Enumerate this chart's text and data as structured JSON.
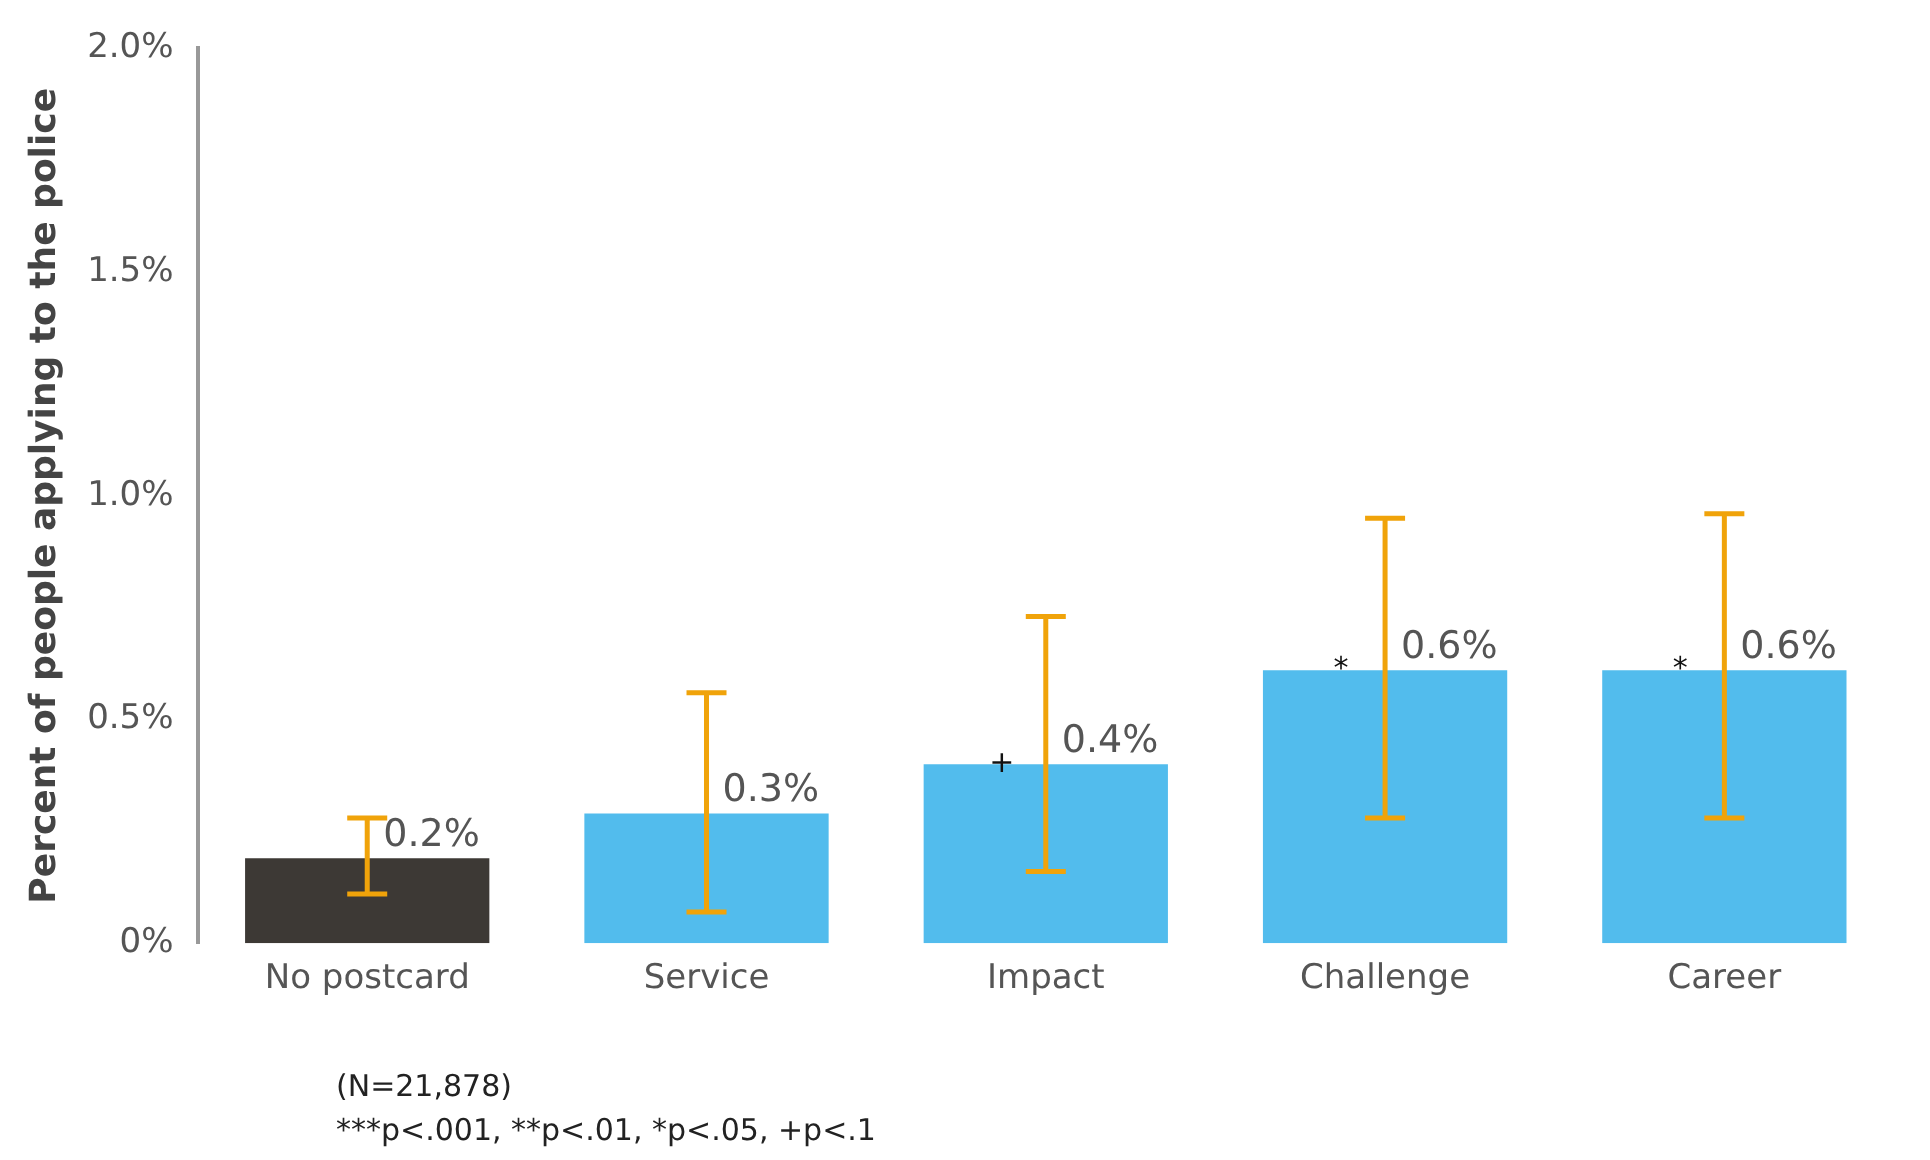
{
  "chart_data": {
    "type": "bar",
    "ylabel": "Percent of people applying to the police",
    "categories": [
      "No postcard",
      "Service",
      "Impact",
      "Challenge",
      "Career"
    ],
    "values": [
      0.19,
      0.29,
      0.4,
      0.61,
      0.61
    ],
    "colors": [
      "#3d3935",
      "#52bced",
      "#52bced",
      "#52bced",
      "#52bced"
    ],
    "errors": [
      [
        0.11,
        0.28
      ],
      [
        0.07,
        0.56
      ],
      [
        0.16,
        0.73
      ],
      [
        0.28,
        0.95
      ],
      [
        0.28,
        0.96
      ]
    ],
    "value_labels": [
      "0.2%",
      "0.3%",
      "0.4%",
      "0.6%",
      "0.6%"
    ],
    "ylim": [
      0,
      2
    ],
    "yticks": [
      {
        "value": 0,
        "label": "0%"
      },
      {
        "value": 0.5,
        "label": "0.5%"
      },
      {
        "value": 1,
        "label": "1.0%"
      },
      {
        "value": 1.5,
        "label": "1.5%"
      },
      {
        "value": 2,
        "label": "2.0%"
      }
    ],
    "grid": false,
    "legend": false,
    "annotations": [
      {
        "text": "+",
        "x": "Impact",
        "y": 0.4
      },
      {
        "text": "*",
        "x": "Challenge",
        "y": 0.61
      },
      {
        "text": "*",
        "x": "Career",
        "y": 0.61
      },
      "(N=21,878)",
      "***p<.001, **p<.01, *p<.05, +p<.1"
    ]
  }
}
